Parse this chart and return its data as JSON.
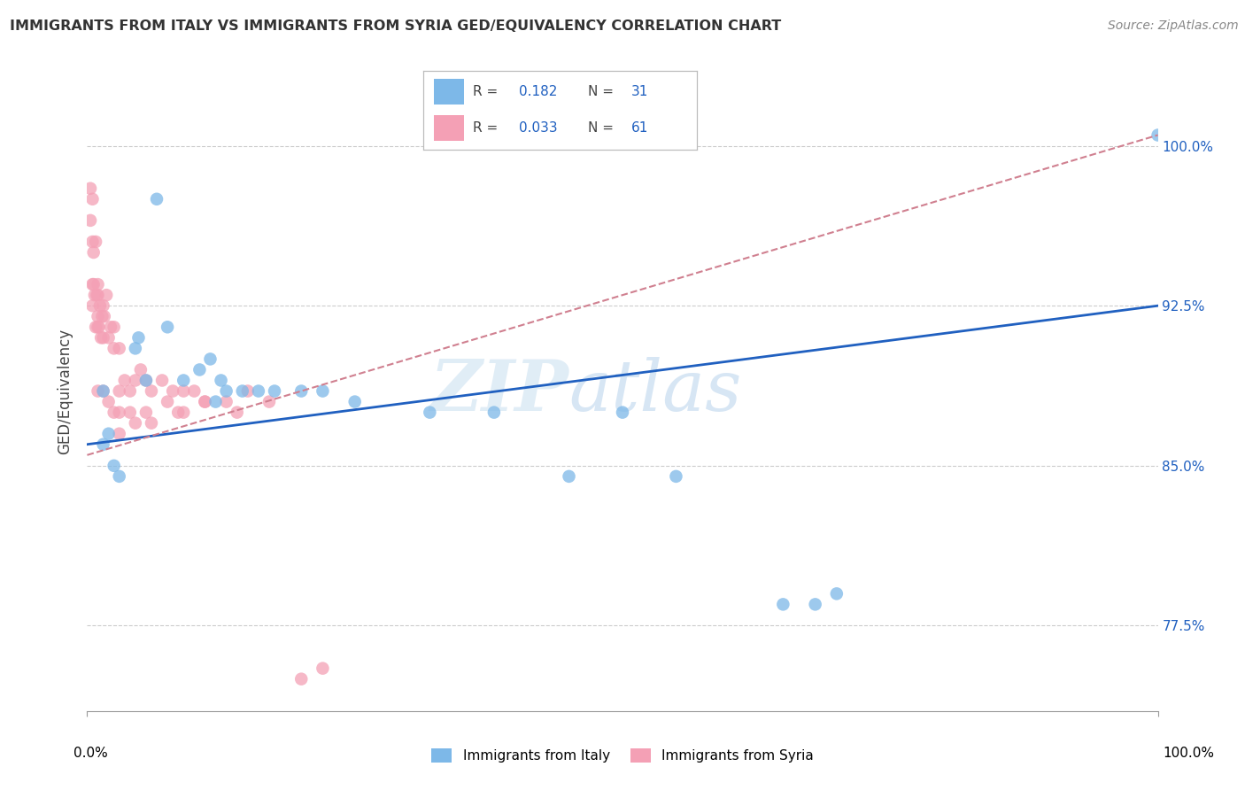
{
  "title": "IMMIGRANTS FROM ITALY VS IMMIGRANTS FROM SYRIA GED/EQUIVALENCY CORRELATION CHART",
  "source": "Source: ZipAtlas.com",
  "ylabel": "GED/Equivalency",
  "ytick_labels": [
    "77.5%",
    "85.0%",
    "92.5%",
    "100.0%"
  ],
  "ytick_values": [
    77.5,
    85.0,
    92.5,
    100.0
  ],
  "xlim": [
    0,
    100
  ],
  "ylim": [
    73.5,
    103.5
  ],
  "legend_italy_R": "0.182",
  "legend_italy_N": "31",
  "legend_syria_R": "0.033",
  "legend_syria_N": "61",
  "italy_color": "#7db8e8",
  "syria_color": "#f4a0b5",
  "italy_line_color": "#2060c0",
  "syria_line_color": "#d08090",
  "watermark_zip": "ZIP",
  "watermark_atlas": "atlas",
  "italy_x": [
    2.0,
    6.5,
    1.5,
    1.5,
    4.5,
    4.8,
    5.5,
    7.5,
    9.0,
    10.5,
    11.5,
    12.0,
    12.5,
    13.0,
    14.5,
    16.0,
    17.5,
    20.0,
    22.0,
    25.0,
    32.0,
    38.0,
    45.0,
    50.0,
    55.0,
    65.0,
    68.0,
    70.0,
    100.0,
    2.5,
    3.0
  ],
  "italy_y": [
    86.5,
    97.5,
    88.5,
    86.0,
    90.5,
    91.0,
    89.0,
    91.5,
    89.0,
    89.5,
    90.0,
    88.0,
    89.0,
    88.5,
    88.5,
    88.5,
    88.5,
    88.5,
    88.5,
    88.0,
    87.5,
    87.5,
    84.5,
    87.5,
    84.5,
    78.5,
    78.5,
    79.0,
    100.5,
    85.0,
    84.5
  ],
  "syria_x": [
    0.3,
    0.3,
    0.5,
    0.5,
    0.5,
    0.5,
    0.6,
    0.6,
    0.7,
    0.8,
    0.8,
    0.9,
    1.0,
    1.0,
    1.0,
    1.0,
    1.1,
    1.2,
    1.3,
    1.4,
    1.5,
    1.5,
    1.6,
    1.8,
    2.0,
    2.2,
    2.5,
    2.5,
    3.0,
    3.0,
    3.5,
    4.0,
    4.5,
    5.0,
    5.5,
    6.0,
    7.0,
    8.0,
    9.0,
    10.0,
    11.0,
    13.0,
    15.0,
    17.0,
    20.0,
    22.0,
    1.0,
    1.5,
    2.0,
    2.5,
    3.0,
    4.0,
    5.5,
    7.5,
    9.0,
    11.0,
    14.0,
    3.0,
    4.5,
    6.0,
    8.5
  ],
  "syria_y": [
    98.0,
    96.5,
    97.5,
    95.5,
    93.5,
    92.5,
    95.0,
    93.5,
    93.0,
    95.5,
    91.5,
    93.0,
    91.5,
    93.0,
    92.0,
    93.5,
    91.5,
    92.5,
    91.0,
    92.0,
    91.0,
    92.5,
    92.0,
    93.0,
    91.0,
    91.5,
    90.5,
    91.5,
    88.5,
    90.5,
    89.0,
    88.5,
    89.0,
    89.5,
    89.0,
    88.5,
    89.0,
    88.5,
    88.5,
    88.5,
    88.0,
    88.0,
    88.5,
    88.0,
    75.0,
    75.5,
    88.5,
    88.5,
    88.0,
    87.5,
    87.5,
    87.5,
    87.5,
    88.0,
    87.5,
    88.0,
    87.5,
    86.5,
    87.0,
    87.0,
    87.5
  ]
}
